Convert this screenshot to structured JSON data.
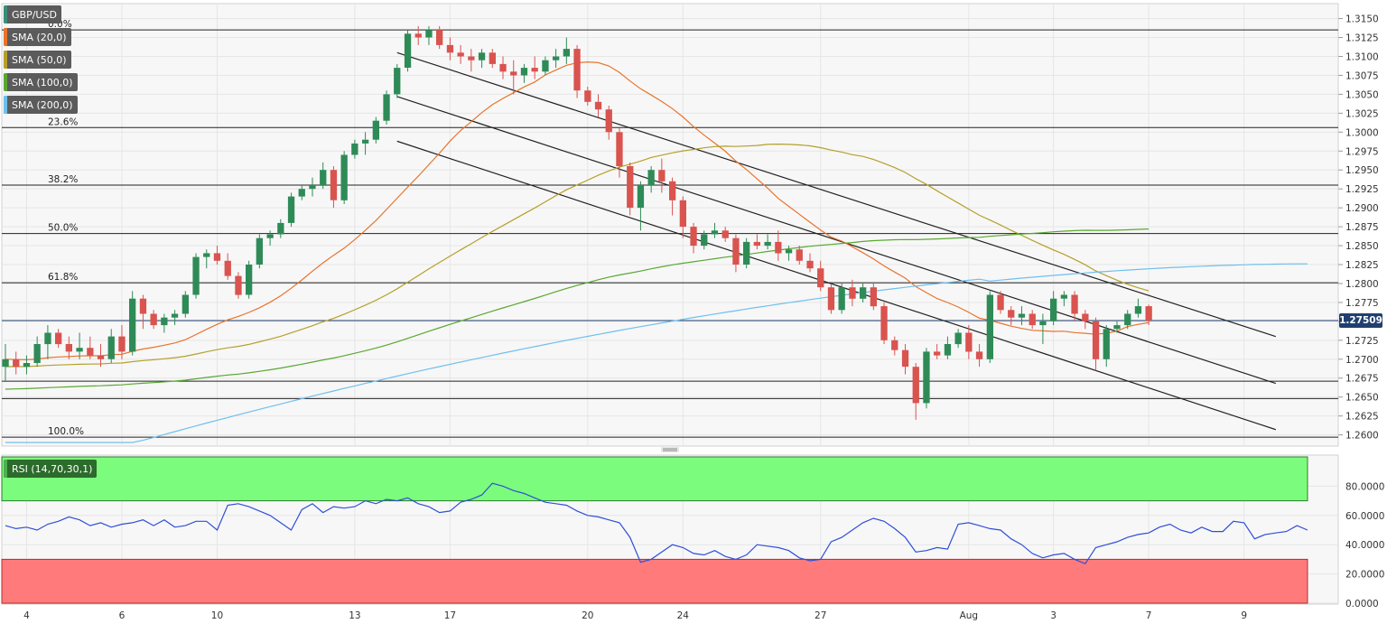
{
  "colors": {
    "bull": "#2e8b57",
    "bear": "#d9534f",
    "sma20": "#e8742c",
    "sma50": "#b5a02a",
    "sma100": "#5aa832",
    "sma200": "#6fbfee",
    "rsi": "#2f4fd8",
    "ob_zone": "#7cfc7c",
    "os_zone": "#ff7b7b",
    "price_tag": "#1f3f6f"
  },
  "legend": [
    {
      "label": "GBP/USD",
      "color": "#3a8f7a"
    },
    {
      "label": "SMA (20,0)",
      "color": "#e8742c"
    },
    {
      "label": "SMA (50,0)",
      "color": "#b5a02a"
    },
    {
      "label": "SMA (100,0)",
      "color": "#5aa832"
    },
    {
      "label": "SMA (200,0)",
      "color": "#6fbfee"
    }
  ],
  "rsi_label": "RSI (14,70,30,1)",
  "current_price_label": "1.27509",
  "chart_data": [
    {
      "type": "candlestick",
      "title": "GBP/USD",
      "y_axis_ticks": [
        "1.3150",
        "1.3125",
        "1.3100",
        "1.3075",
        "1.3050",
        "1.3025",
        "1.3000",
        "1.2975",
        "1.2950",
        "1.2925",
        "1.2900",
        "1.2875",
        "1.2850",
        "1.2825",
        "1.2800",
        "1.2775",
        "1.2750",
        "1.2725",
        "1.2700",
        "1.2675",
        "1.2650",
        "1.2625",
        "1.2600"
      ],
      "ylim": [
        1.259,
        1.3165
      ],
      "x_axis_ticks": [
        {
          "label": "4",
          "bar": 2
        },
        {
          "label": "6",
          "bar": 11
        },
        {
          "label": "10",
          "bar": 20
        },
        {
          "label": "13",
          "bar": 33
        },
        {
          "label": "17",
          "bar": 42
        },
        {
          "label": "20",
          "bar": 55
        },
        {
          "label": "24",
          "bar": 64
        },
        {
          "label": "27",
          "bar": 77
        },
        {
          "label": "Aug",
          "bar": 91
        },
        {
          "label": "3",
          "bar": 99
        },
        {
          "label": "7",
          "bar": 108
        },
        {
          "label": "9",
          "bar": 117
        }
      ],
      "fibonacci": [
        {
          "label": "0.0%",
          "price": 1.3135
        },
        {
          "label": "23.6%",
          "price": 1.3006
        },
        {
          "label": "38.2%",
          "price": 1.293
        },
        {
          "label": "50.0%",
          "price": 1.2866
        },
        {
          "label": "61.8%",
          "price": 1.2801
        },
        {
          "label": "",
          "price": 1.2671
        },
        {
          "label": "",
          "price": 1.2648
        },
        {
          "label": "100.0%",
          "price": 1.2597
        }
      ],
      "current_price": 1.2751,
      "channel_lines": [
        {
          "x1": 37,
          "y1": 1.3105,
          "x2": 120,
          "y2": 1.273
        },
        {
          "x1": 37,
          "y1": 1.3047,
          "x2": 120,
          "y2": 1.2668
        },
        {
          "x1": 37,
          "y1": 1.2988,
          "x2": 120,
          "y2": 1.2607
        }
      ],
      "ohlc": [
        [
          1.269,
          1.272,
          1.267,
          1.27
        ],
        [
          1.27,
          1.271,
          1.268,
          1.269
        ],
        [
          1.269,
          1.2705,
          1.268,
          1.2695
        ],
        [
          1.2695,
          1.273,
          1.269,
          1.272
        ],
        [
          1.272,
          1.2745,
          1.27,
          1.2735
        ],
        [
          1.2735,
          1.274,
          1.2715,
          1.272
        ],
        [
          1.272,
          1.273,
          1.27,
          1.271
        ],
        [
          1.271,
          1.2735,
          1.27,
          1.2715
        ],
        [
          1.2715,
          1.273,
          1.27,
          1.2705
        ],
        [
          1.2705,
          1.272,
          1.269,
          1.27
        ],
        [
          1.27,
          1.274,
          1.2695,
          1.273
        ],
        [
          1.273,
          1.2745,
          1.27,
          1.271
        ],
        [
          1.271,
          1.279,
          1.2705,
          1.278
        ],
        [
          1.278,
          1.2785,
          1.274,
          1.276
        ],
        [
          1.276,
          1.2765,
          1.274,
          1.2745
        ],
        [
          1.2745,
          1.276,
          1.2735,
          1.2755
        ],
        [
          1.2755,
          1.2765,
          1.2745,
          1.276
        ],
        [
          1.276,
          1.279,
          1.2755,
          1.2785
        ],
        [
          1.2785,
          1.284,
          1.278,
          1.2835
        ],
        [
          1.2835,
          1.2845,
          1.282,
          1.284
        ],
        [
          1.284,
          1.285,
          1.2825,
          1.283
        ],
        [
          1.283,
          1.284,
          1.2805,
          1.281
        ],
        [
          1.281,
          1.2815,
          1.278,
          1.2785
        ],
        [
          1.2785,
          1.283,
          1.278,
          1.2825
        ],
        [
          1.2825,
          1.2865,
          1.282,
          1.286
        ],
        [
          1.286,
          1.287,
          1.285,
          1.2865
        ],
        [
          1.2865,
          1.2885,
          1.286,
          1.288
        ],
        [
          1.288,
          1.292,
          1.2875,
          1.2915
        ],
        [
          1.2915,
          1.293,
          1.291,
          1.2925
        ],
        [
          1.2925,
          1.294,
          1.2915,
          1.293
        ],
        [
          1.293,
          1.296,
          1.2925,
          1.295
        ],
        [
          1.295,
          1.2955,
          1.29,
          1.291
        ],
        [
          1.291,
          1.2975,
          1.2905,
          1.297
        ],
        [
          1.297,
          1.299,
          1.2965,
          1.2985
        ],
        [
          1.2985,
          1.3,
          1.297,
          1.299
        ],
        [
          1.299,
          1.302,
          1.2985,
          1.3015
        ],
        [
          1.3015,
          1.3055,
          1.301,
          1.305
        ],
        [
          1.305,
          1.309,
          1.3045,
          1.3085
        ],
        [
          1.3085,
          1.3135,
          1.308,
          1.313
        ],
        [
          1.313,
          1.314,
          1.3115,
          1.3125
        ],
        [
          1.3125,
          1.314,
          1.3115,
          1.3135
        ],
        [
          1.3135,
          1.314,
          1.311,
          1.3115
        ],
        [
          1.3115,
          1.3125,
          1.3095,
          1.3105
        ],
        [
          1.3105,
          1.3115,
          1.309,
          1.31
        ],
        [
          1.31,
          1.311,
          1.308,
          1.3095
        ],
        [
          1.3095,
          1.311,
          1.3085,
          1.3105
        ],
        [
          1.3105,
          1.311,
          1.3085,
          1.309
        ],
        [
          1.309,
          1.31,
          1.307,
          1.308
        ],
        [
          1.308,
          1.3095,
          1.305,
          1.3075
        ],
        [
          1.3075,
          1.309,
          1.3065,
          1.3085
        ],
        [
          1.3085,
          1.31,
          1.307,
          1.308
        ],
        [
          1.308,
          1.31,
          1.3075,
          1.3095
        ],
        [
          1.3095,
          1.311,
          1.3085,
          1.31
        ],
        [
          1.31,
          1.3125,
          1.309,
          1.311
        ],
        [
          1.311,
          1.3115,
          1.3045,
          1.3055
        ],
        [
          1.3055,
          1.306,
          1.3035,
          1.304
        ],
        [
          1.304,
          1.305,
          1.302,
          1.303
        ],
        [
          1.303,
          1.3035,
          1.299,
          1.3
        ],
        [
          1.3,
          1.3005,
          1.294,
          1.2955
        ],
        [
          1.2955,
          1.296,
          1.289,
          1.29
        ],
        [
          1.29,
          1.2935,
          1.287,
          1.293
        ],
        [
          1.293,
          1.2955,
          1.292,
          1.295
        ],
        [
          1.295,
          1.2965,
          1.292,
          1.2935
        ],
        [
          1.2935,
          1.294,
          1.289,
          1.291
        ],
        [
          1.291,
          1.2915,
          1.286,
          1.2875
        ],
        [
          1.2875,
          1.288,
          1.284,
          1.285
        ],
        [
          1.285,
          1.287,
          1.2845,
          1.2865
        ],
        [
          1.2865,
          1.288,
          1.286,
          1.287
        ],
        [
          1.287,
          1.2875,
          1.2855,
          1.286
        ],
        [
          1.286,
          1.2865,
          1.2815,
          1.2825
        ],
        [
          1.2825,
          1.286,
          1.282,
          1.2855
        ],
        [
          1.2855,
          1.2865,
          1.2845,
          1.285
        ],
        [
          1.285,
          1.2865,
          1.2845,
          1.2855
        ]
      ],
      "ohlc_note_split": 73
    },
    {
      "type": "line",
      "title": "RSI (14,70,30,1)",
      "y_axis_ticks": [
        "80.0000",
        "60.0000",
        "40.0000",
        "20.0000",
        "0.0000"
      ],
      "ylim": [
        0,
        100
      ],
      "overbought": 70,
      "oversold": 30,
      "values": [
        53,
        51,
        52,
        50,
        54,
        56,
        59,
        57,
        53,
        55,
        52,
        54,
        55,
        57,
        53,
        57,
        52,
        53,
        56,
        56,
        50,
        67,
        68,
        66,
        63,
        60,
        55,
        50,
        64,
        68,
        62,
        66,
        65,
        66,
        70,
        68,
        71,
        70,
        72,
        68,
        66,
        62,
        63,
        69,
        71,
        74,
        82,
        80,
        77,
        75,
        72,
        69,
        68,
        67,
        63,
        60,
        59,
        57,
        55,
        45,
        28,
        30,
        35,
        40,
        38,
        34,
        33,
        36,
        32,
        30,
        33,
        40,
        39,
        38,
        36,
        31,
        29,
        30,
        42,
        45,
        50,
        55,
        58,
        56,
        51,
        45,
        35,
        36,
        38,
        37,
        54,
        55,
        53,
        51,
        50,
        44,
        40,
        34,
        31,
        33,
        34,
        30,
        27,
        38,
        40,
        42,
        45,
        47,
        48,
        52,
        54,
        50,
        48,
        52,
        49,
        49,
        56,
        55,
        44,
        47,
        48,
        49,
        53,
        50
      ]
    }
  ]
}
